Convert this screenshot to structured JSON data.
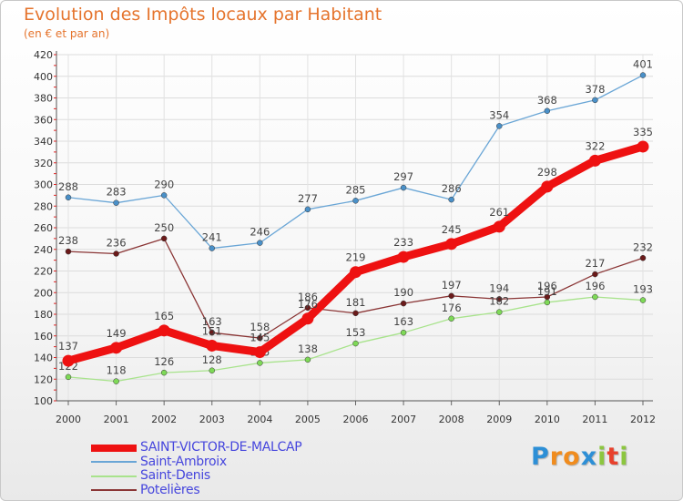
{
  "chart_data": {
    "type": "line",
    "title": "Evolution des Impôts locaux par Habitant",
    "subtitle": "(en € et par an)",
    "xlabel": "",
    "ylabel": "",
    "ylim": [
      100,
      420
    ],
    "y_ticks": [
      100,
      120,
      140,
      160,
      180,
      200,
      220,
      240,
      260,
      280,
      300,
      320,
      340,
      360,
      380,
      400,
      420
    ],
    "x": [
      "2000",
      "2001",
      "2002",
      "2003",
      "2004",
      "2005",
      "2006",
      "2007",
      "2008",
      "2009",
      "2010",
      "2011",
      "2012"
    ],
    "grid": true,
    "legend_position": "bottom-left",
    "series": [
      {
        "name": "Saint-Ambroix",
        "color": "#4a90c8",
        "line": "#6aa6d6",
        "values": [
          288,
          283,
          290,
          241,
          246,
          277,
          285,
          297,
          286,
          354,
          368,
          378,
          401
        ]
      },
      {
        "name": "Potelières",
        "color": "#6b1a1a",
        "line": "#8a3535",
        "values": [
          238,
          236,
          250,
          163,
          158,
          186,
          181,
          190,
          197,
          194,
          196,
          217,
          232
        ]
      },
      {
        "name": "Saint-Denis",
        "color": "#7ed957",
        "line": "#a8e38c",
        "values": [
          122,
          118,
          126,
          128,
          135,
          138,
          153,
          163,
          176,
          182,
          191,
          196,
          193
        ]
      },
      {
        "name": "SAINT-VICTOR-DE-MALCAP",
        "color": "#ee1111",
        "line": "#ee1111",
        "values": [
          137,
          149,
          165,
          151,
          145,
          176,
          219,
          233,
          245,
          261,
          298,
          322,
          335
        ]
      }
    ],
    "legend_order": [
      "SAINT-VICTOR-DE-MALCAP",
      "Saint-Ambroix",
      "Saint-Denis",
      "Potelières"
    ]
  },
  "logo": {
    "letters": [
      "P",
      "r",
      "o",
      "x",
      "i",
      "t",
      "i"
    ],
    "colors": [
      "#2d8fd6",
      "#f08c1e",
      "#f08c1e",
      "#2d8fd6",
      "#8cc63f",
      "#e8412c",
      "#8cc63f"
    ]
  }
}
